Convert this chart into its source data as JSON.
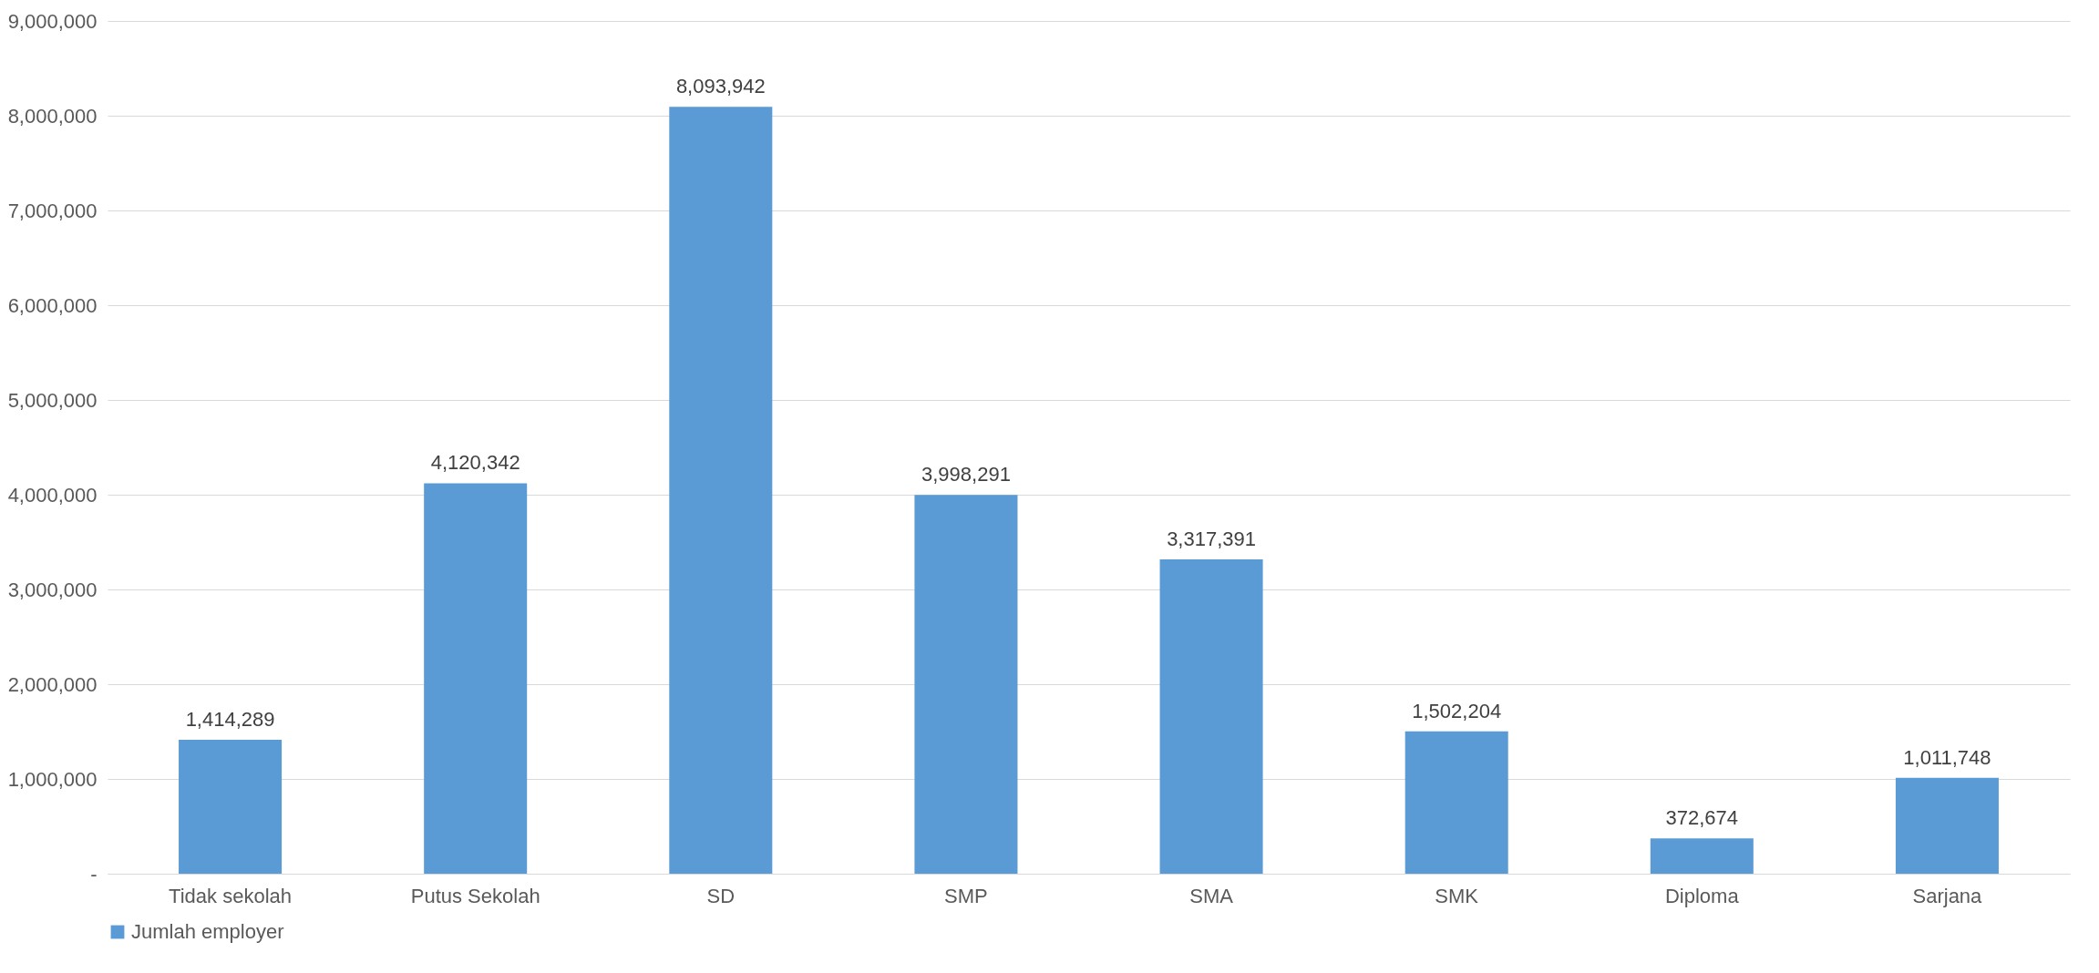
{
  "chart_data": {
    "type": "bar",
    "categories": [
      "Tidak sekolah",
      "Putus Sekolah",
      "SD",
      "SMP",
      "SMA",
      "SMK",
      "Diploma",
      "Sarjana"
    ],
    "series": [
      {
        "name": "Jumlah employer",
        "color": "#5b9bd5",
        "values": [
          1414289,
          4120342,
          8093942,
          3998291,
          3317391,
          1502204,
          372674,
          1011748
        ],
        "value_labels": [
          "1,414,289",
          "4,120,342",
          "8,093,942",
          "3,998,291",
          "3,317,391",
          "1,502,204",
          "372,674",
          "1,011,748"
        ]
      }
    ],
    "ylim": [
      0,
      9000000
    ],
    "yticks": [
      {
        "value": 0,
        "label": "-"
      },
      {
        "value": 1000000,
        "label": "1,000,000"
      },
      {
        "value": 2000000,
        "label": "2,000,000"
      },
      {
        "value": 3000000,
        "label": "3,000,000"
      },
      {
        "value": 4000000,
        "label": "4,000,000"
      },
      {
        "value": 5000000,
        "label": "5,000,000"
      },
      {
        "value": 6000000,
        "label": "6,000,000"
      },
      {
        "value": 7000000,
        "label": "7,000,000"
      },
      {
        "value": 8000000,
        "label": "8,000,000"
      },
      {
        "value": 9000000,
        "label": "9,000,000"
      }
    ],
    "grid": "y",
    "legend": "bottom"
  }
}
